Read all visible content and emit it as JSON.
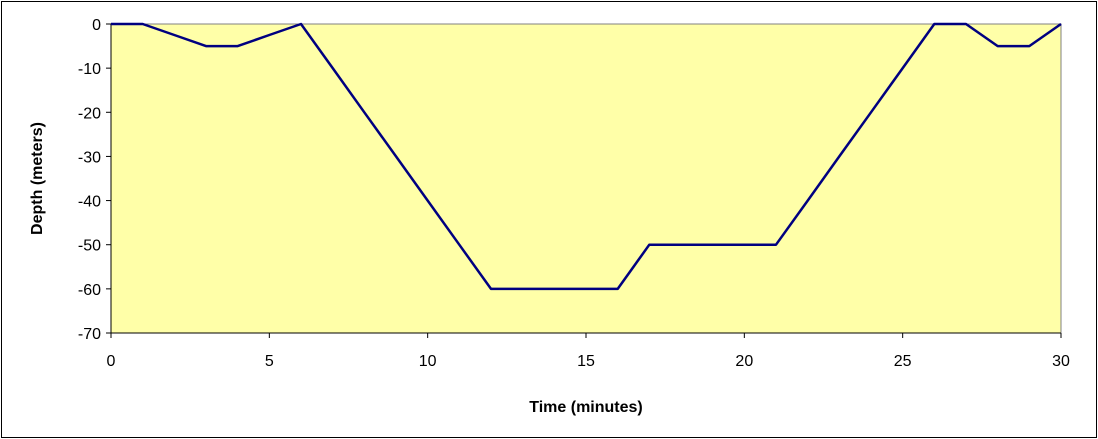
{
  "chart_data": {
    "type": "line",
    "title": "",
    "xlabel": "Time (minutes)",
    "ylabel": "Depth (meters)",
    "xlim": [
      0,
      30
    ],
    "ylim": [
      -70,
      0
    ],
    "x_ticks": [
      0,
      5,
      10,
      15,
      20,
      25,
      30
    ],
    "y_ticks": [
      0,
      -10,
      -20,
      -30,
      -40,
      -50,
      -60,
      -70
    ],
    "grid": false,
    "legend": "none",
    "colors": {
      "plot_background": "#ffffa8",
      "line": "#000080",
      "frame": "#000000"
    },
    "series": [
      {
        "x": [
          0,
          1,
          2,
          3,
          4,
          5,
          6,
          7,
          8,
          9,
          10,
          11,
          12,
          13,
          14,
          15,
          16,
          17,
          18,
          19,
          20,
          21,
          22,
          23,
          24,
          25,
          26,
          27,
          28,
          29,
          30
        ],
        "y": [
          0,
          0,
          -2.5,
          -5,
          -5,
          -2.5,
          0,
          -10,
          -20,
          -30,
          -40,
          -50,
          -60,
          -60,
          -60,
          -60,
          -60,
          -50,
          -50,
          -50,
          -50,
          -50,
          -40,
          -30,
          -20,
          -10,
          0,
          0,
          -5,
          -5,
          0
        ]
      }
    ]
  }
}
